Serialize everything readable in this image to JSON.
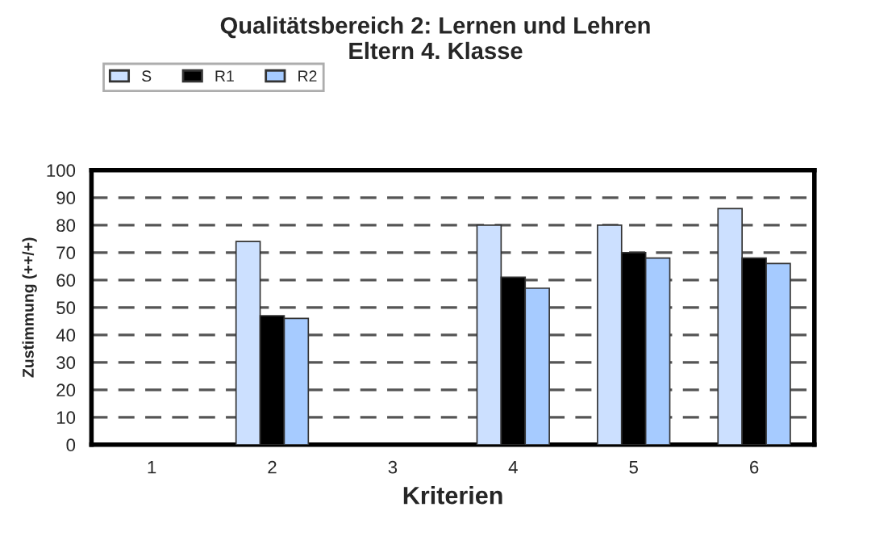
{
  "chart_data": {
    "type": "bar",
    "title": "Qualitätsbereich 2: Lernen und Lehren\nEltern 4. Klasse",
    "xlabel": "Kriterien",
    "ylabel": "Zustimmung (++/+)",
    "categories": [
      "1",
      "2",
      "3",
      "4",
      "5",
      "6"
    ],
    "series": [
      {
        "name": "S",
        "color": "#cce0ff",
        "values": [
          null,
          74,
          null,
          80,
          80,
          86
        ]
      },
      {
        "name": "R1",
        "color": "#000000",
        "values": [
          null,
          47,
          null,
          61,
          70,
          68
        ]
      },
      {
        "name": "R2",
        "color": "#a6cbff",
        "values": [
          null,
          46,
          null,
          57,
          68,
          66
        ]
      }
    ],
    "ylim": [
      0,
      100
    ],
    "yticks": [
      0,
      10,
      20,
      30,
      40,
      50,
      60,
      70,
      80,
      90,
      100
    ],
    "grid": "y",
    "legend": "top left"
  }
}
